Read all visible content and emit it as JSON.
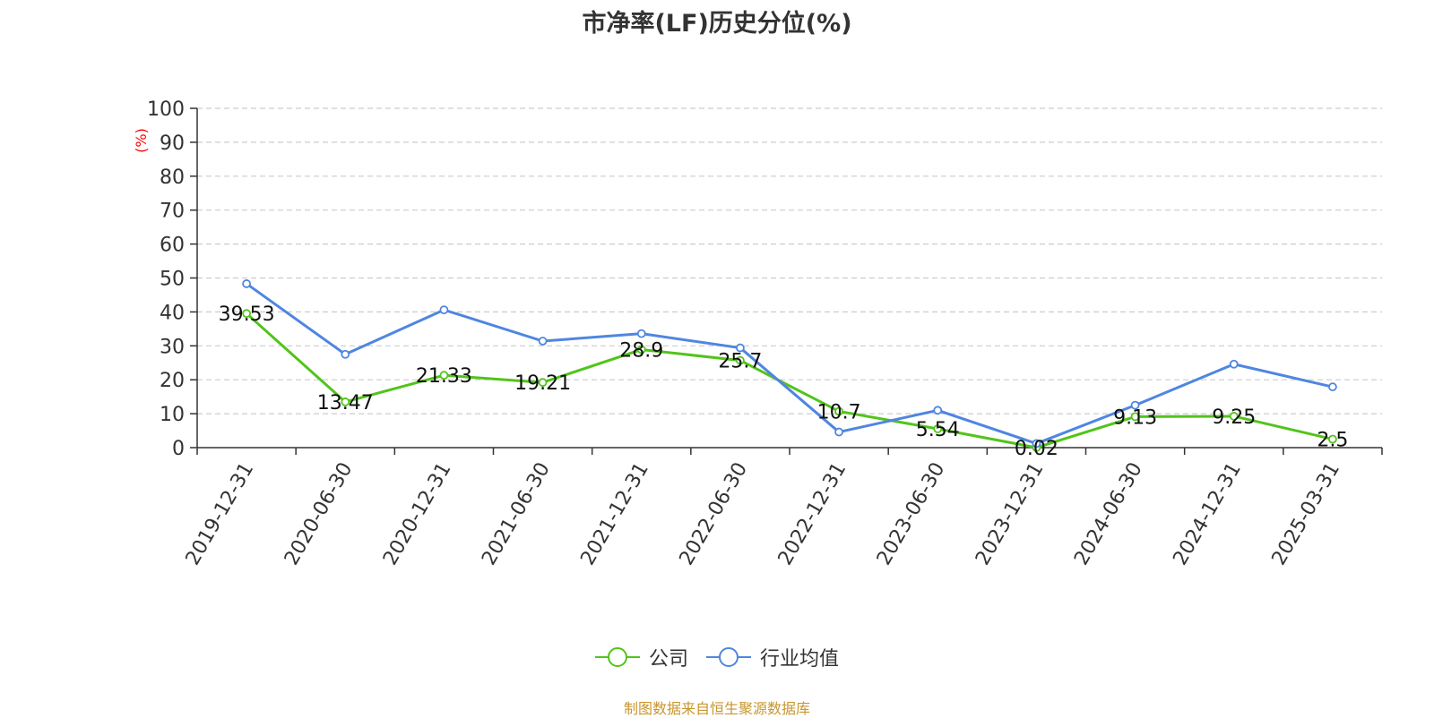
{
  "chart_data": {
    "type": "line",
    "title": "市净率(LF)历史分位(%)",
    "ylabel": "(%)",
    "xlabel": "",
    "categories": [
      "2019-12-31",
      "2020-06-30",
      "2020-12-31",
      "2021-06-30",
      "2021-12-31",
      "2022-06-30",
      "2022-12-31",
      "2023-06-30",
      "2023-12-31",
      "2024-06-30",
      "2024-12-31",
      "2025-03-31"
    ],
    "ylim": [
      0,
      100
    ],
    "yticks": [
      "0",
      "10",
      "20",
      "30",
      "40",
      "50",
      "60",
      "70",
      "80",
      "90",
      "100"
    ],
    "grid": true,
    "legend_position": "bottom-center",
    "series": [
      {
        "name": "公司",
        "color": "#52c41a",
        "values": [
          39.53,
          13.47,
          21.33,
          19.21,
          28.9,
          25.7,
          10.7,
          5.54,
          0.02,
          9.13,
          9.25,
          2.5
        ],
        "labels": [
          "39.53",
          "13.47",
          "21.33",
          "19.21",
          "28.9",
          "25.7",
          "10.7",
          "5.54",
          "0.02",
          "9.13",
          "9.25",
          "2.5"
        ]
      },
      {
        "name": "行业均值",
        "color": "#4f86e0",
        "values": [
          48.3,
          27.5,
          40.6,
          31.4,
          33.6,
          29.4,
          4.6,
          11.0,
          1.2,
          12.5,
          24.6,
          17.9
        ]
      }
    ]
  },
  "source_text": "制图数据来自恒生聚源数据库",
  "colors": {
    "title": "#333333",
    "axis": "#333333",
    "grid": "#cccccc",
    "ylabel": "#ff0000",
    "source": "#c8962d"
  }
}
